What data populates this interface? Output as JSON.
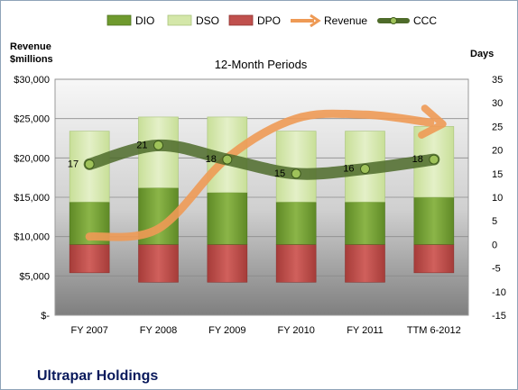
{
  "chart_data": {
    "type": "bar",
    "title": "Ultrapar Holdings",
    "subtitle": "12-Month Periods",
    "y_left_label_1": "Revenue",
    "y_left_label_2": "$millions",
    "y_right_label": "Days",
    "categories": [
      "FY 2007",
      "FY 2008",
      "FY 2009",
      "FY 2010",
      "FY 2011",
      "TTM 6-2012"
    ],
    "left_axis": {
      "ylim": [
        0,
        30000
      ],
      "ticks": [
        0,
        5000,
        10000,
        15000,
        20000,
        25000,
        30000
      ],
      "tick_labels": [
        "$-",
        "$5,000",
        "$10,000",
        "$15,000",
        "$20,000",
        "$25,000",
        "$30,000"
      ]
    },
    "right_axis": {
      "ylim": [
        -15,
        35
      ],
      "ticks": [
        -15,
        -10,
        -5,
        0,
        5,
        10,
        15,
        20,
        25,
        30,
        35
      ],
      "tick_labels": [
        "-15",
        "-10",
        "-5",
        "0",
        "5",
        "10",
        "15",
        "20",
        "25",
        "30",
        "35"
      ]
    },
    "legend_position": "top",
    "series": [
      {
        "name": "DIO",
        "axis": "right",
        "kind": "stacked-bar",
        "color": "#6f9a2e",
        "values": [
          9,
          12,
          11,
          9,
          9,
          10
        ]
      },
      {
        "name": "DSO",
        "axis": "right",
        "kind": "stacked-bar",
        "color": "#d4e7a9",
        "values": [
          15,
          15,
          16,
          15,
          15,
          15
        ]
      },
      {
        "name": "DPO",
        "axis": "right",
        "kind": "negative-bar",
        "color": "#c0504d",
        "values": [
          -6,
          -8,
          -8,
          -8,
          -8,
          -6
        ]
      },
      {
        "name": "Revenue",
        "axis": "left",
        "kind": "line",
        "color": "#ee9a55",
        "values": [
          10000,
          11000,
          20000,
          25000,
          25500,
          24500
        ]
      },
      {
        "name": "CCC",
        "axis": "right",
        "kind": "line",
        "color": "#4e6b2a",
        "values": [
          17,
          21,
          18,
          15,
          16,
          18
        ],
        "labels": [
          "17",
          "21",
          "18",
          "15",
          "16",
          "18"
        ]
      }
    ]
  }
}
